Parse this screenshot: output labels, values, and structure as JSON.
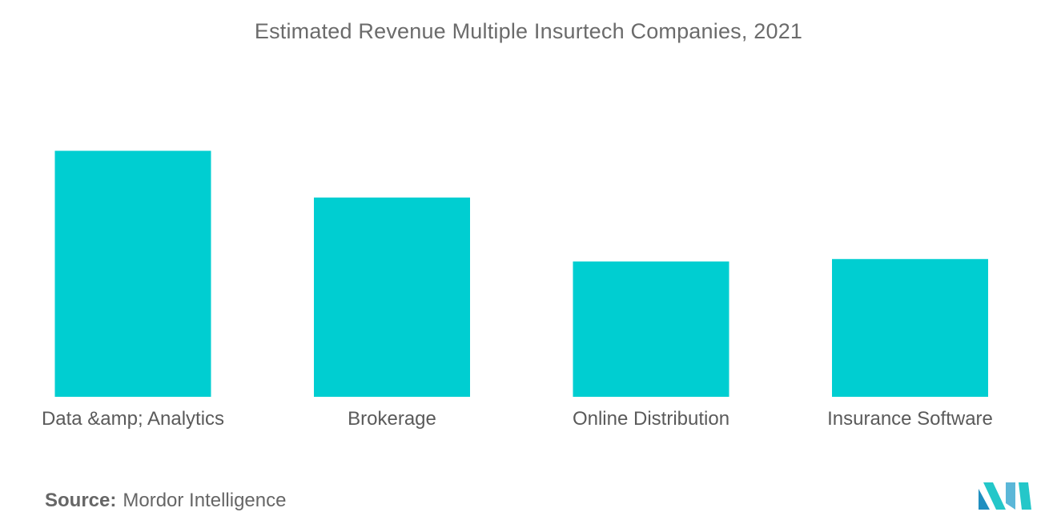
{
  "chart_data": {
    "type": "bar",
    "title": "Estimated Revenue Multiple Insurtech Companies, 2021",
    "categories": [
      "Data &amp; Analytics",
      "Brokerage",
      "Online Distribution",
      "Insurance Software"
    ],
    "values": [
      10,
      8.1,
      5.5,
      5.6
    ],
    "xlabel": "",
    "ylabel": "",
    "ylim": [
      0,
      10.6
    ],
    "grid": false,
    "legend": "none",
    "bar_color": "#00ced1"
  },
  "source": {
    "label": "Source:",
    "value": "Mordor Intelligence"
  },
  "logo": {
    "icon": "mordor-intelligence-logo",
    "colors": [
      "#1f8fc0",
      "#24c7c9",
      "#5bb7d8"
    ]
  }
}
